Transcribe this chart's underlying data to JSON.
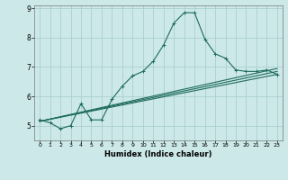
{
  "xlabel": "Humidex (Indice chaleur)",
  "xlim": [
    -0.5,
    23.5
  ],
  "ylim": [
    4.5,
    9.1
  ],
  "xticks": [
    0,
    1,
    2,
    3,
    4,
    5,
    6,
    7,
    8,
    9,
    10,
    11,
    12,
    13,
    14,
    15,
    16,
    17,
    18,
    19,
    20,
    21,
    22,
    23
  ],
  "yticks": [
    5,
    6,
    7,
    8,
    9
  ],
  "bg_color": "#cce8e8",
  "line_color": "#1e6b5e",
  "grid_color": "#aacfcf",
  "figsize": [
    3.2,
    2.0
  ],
  "dpi": 100,
  "lines": [
    {
      "x": [
        0,
        1,
        2,
        3,
        4,
        5,
        6,
        7,
        8,
        9,
        10,
        11,
        12,
        13,
        14,
        15,
        16,
        17,
        18,
        19,
        20,
        21,
        22,
        23
      ],
      "y": [
        5.2,
        5.1,
        4.9,
        5.0,
        5.75,
        5.2,
        5.2,
        5.9,
        6.35,
        6.7,
        6.85,
        7.2,
        7.75,
        8.5,
        8.85,
        8.85,
        7.95,
        7.45,
        7.3,
        6.9,
        6.85,
        6.85,
        6.9,
        6.75
      ],
      "marker": "+"
    },
    {
      "x": [
        0,
        23
      ],
      "y": [
        5.15,
        6.95
      ],
      "marker": null
    },
    {
      "x": [
        0,
        23
      ],
      "y": [
        5.15,
        6.85
      ],
      "marker": null
    },
    {
      "x": [
        0,
        23
      ],
      "y": [
        5.15,
        6.75
      ],
      "marker": null
    }
  ]
}
